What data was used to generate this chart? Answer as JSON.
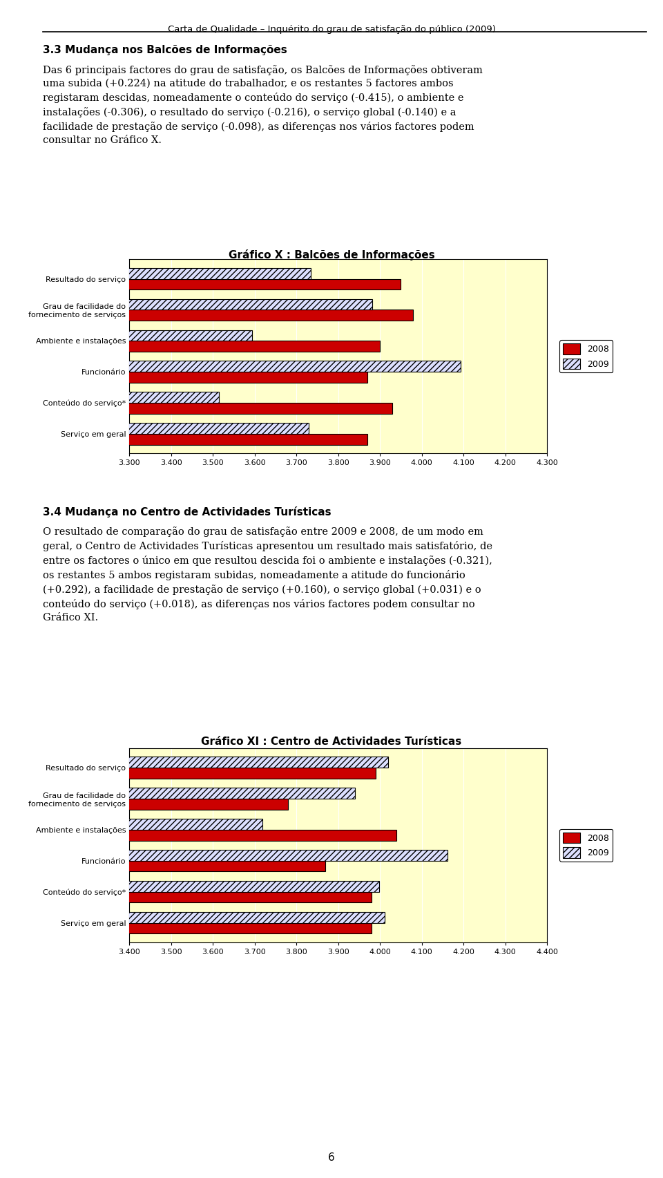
{
  "chart1": {
    "title": "Gráfico X : Balcões de Informações",
    "categories": [
      "Resultado do serviço",
      "Grau de facilidade do\nfornecimento de serviços",
      "Ambiente e instalações",
      "Funcionário",
      "Conteúdo do serviço*",
      "Serviço em geral"
    ],
    "values_2008": [
      3.95,
      3.98,
      3.9,
      3.87,
      3.93,
      3.87
    ],
    "values_2009": [
      3.734,
      3.882,
      3.594,
      4.094,
      3.515,
      3.73
    ],
    "xlim": [
      3.3,
      4.3
    ],
    "xticks": [
      3.3,
      3.4,
      3.5,
      3.6,
      3.7,
      3.8,
      3.9,
      4.0,
      4.1,
      4.2,
      4.3
    ],
    "color_2008": "#cc0000",
    "color_2009_face": "#dde0ff",
    "color_2009_hatch": "////",
    "bg_color": "#ffffcc"
  },
  "chart2": {
    "title": "Gráfico XI : Centro de Actividades Turísticas",
    "categories": [
      "Resultado do serviço",
      "Grau de facilidade do\nfornecimento de serviços",
      "Ambiente e instalações",
      "Funcionário",
      "Conteúdo do serviço*",
      "Serviço em geral"
    ],
    "values_2008": [
      3.99,
      3.78,
      4.04,
      3.87,
      3.98,
      3.98
    ],
    "values_2009": [
      4.02,
      3.94,
      3.719,
      4.162,
      3.998,
      4.011
    ],
    "xlim": [
      3.4,
      4.4
    ],
    "xticks": [
      3.4,
      3.5,
      3.6,
      3.7,
      3.8,
      3.9,
      4.0,
      4.1,
      4.2,
      4.3,
      4.4
    ],
    "color_2008": "#cc0000",
    "color_2009_face": "#dde0ff",
    "color_2009_hatch": "////",
    "bg_color": "#ffffcc"
  },
  "page_background": "#ffffff",
  "header_text": "Carta de Qualidade – Inquérito do grau de satisfação do público (2009)",
  "section_title1": "3.3 Mudança nos Balcões de Informações",
  "section_text1": "Das 6 principais factores do grau de satisfação, os Balcões de Informações obtiveram\numa subida (+0.224) na atitude do trabalhador, e os restantes 5 factores ambos\nregistaram descidas, nomeadamente o conteúdo do serviço (-0.415), o ambiente e\ninstalações (-0.306), o resultado do serviço (-0.216), o serviço global (-0.140) e a\nfacilidade de prestação de serviço (-0.098), as diferenças nos vários factores podem\nconsultar no Gráfico X.",
  "section_title2": "3.4 Mudança no Centro de Actividades Turísticas",
  "section_text2": "O resultado de comparação do grau de satisfação entre 2009 e 2008, de um modo em\ngeral, o Centro de Actividades Turísticas apresentou um resultado mais satisfatório, de\nentre os factores o único em que resultou descida foi o ambiente e instalações (-0.321),\nos restantes 5 ambos registaram subidas, nomeadamente a atitude do funcionário\n(+0.292), a facilidade de prestação de serviço (+0.160), o serviço global (+0.031) e o\nconteúdo do serviço (+0.018), as diferenças nos vários factores podem consultar no\nGráfico XI.",
  "page_number": "6"
}
